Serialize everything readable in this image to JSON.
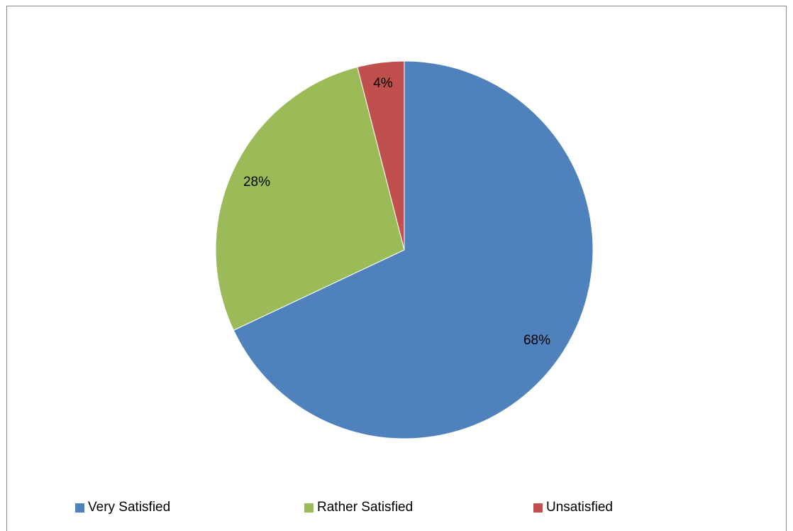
{
  "chart_data": {
    "type": "pie",
    "title": "",
    "slices": [
      {
        "name": "Very Satisfied",
        "value": 68,
        "label": "68%",
        "color": "#4F81BD"
      },
      {
        "name": "Rather Satisfied",
        "value": 28,
        "label": "28%",
        "color": "#9BBB59"
      },
      {
        "name": "Unsatisfied",
        "value": 4,
        "label": "4%",
        "color": "#C0504D"
      }
    ],
    "legend_position": "bottom"
  }
}
